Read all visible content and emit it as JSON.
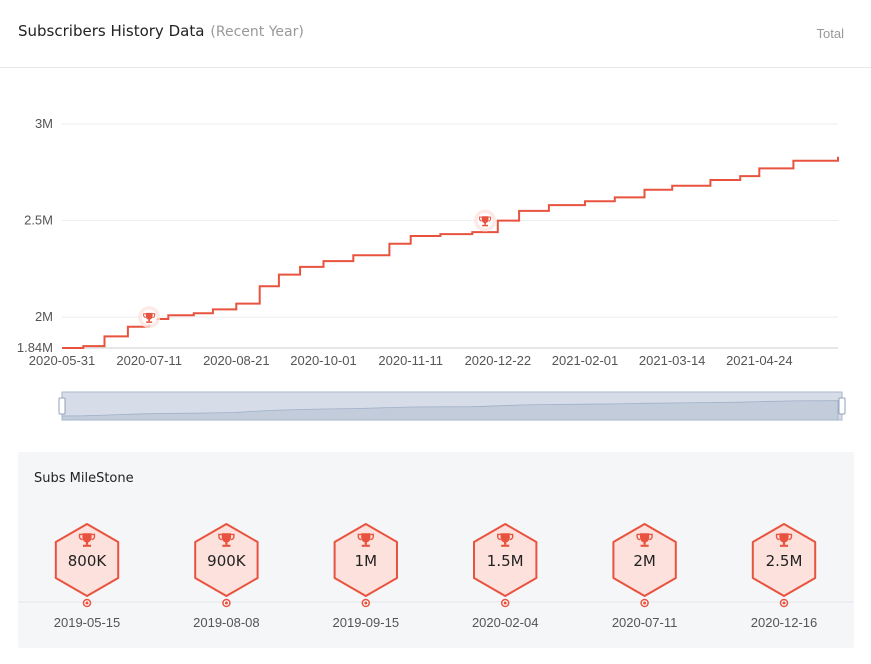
{
  "header": {
    "title": "Subscribers History Data",
    "subtitle": "(Recent Year)",
    "total_label": "Total"
  },
  "colors": {
    "line": "#e8533f",
    "hex_fill": "#fde1dc",
    "grid": "#eeeeee",
    "slider_fill": "#d6dde8",
    "slider_border": "#aab8cc"
  },
  "chart_data": {
    "type": "line",
    "title": "Subscribers History Data",
    "x_tick_labels": [
      "2020-05-31",
      "2020-07-11",
      "2020-08-21",
      "2020-10-01",
      "2020-11-11",
      "2020-12-22",
      "2021-02-01",
      "2021-03-14",
      "2021-04-24"
    ],
    "y_tick_labels": [
      "3M",
      "2.5M",
      "2M",
      "1.84M"
    ],
    "ylim": [
      1840000,
      3000000
    ],
    "x_range": [
      "2020-05-31",
      "2021-05-31"
    ],
    "grid": true,
    "series": [
      {
        "values": [
          [
            "2020-05-31",
            1840000
          ],
          [
            "2020-06-10",
            1850000
          ],
          [
            "2020-06-20",
            1900000
          ],
          [
            "2020-07-01",
            1950000
          ],
          [
            "2020-07-11",
            1990000
          ],
          [
            "2020-07-20",
            2010000
          ],
          [
            "2020-08-01",
            2020000
          ],
          [
            "2020-08-10",
            2040000
          ],
          [
            "2020-08-21",
            2070000
          ],
          [
            "2020-09-01",
            2160000
          ],
          [
            "2020-09-10",
            2220000
          ],
          [
            "2020-09-20",
            2260000
          ],
          [
            "2020-10-01",
            2290000
          ],
          [
            "2020-10-15",
            2320000
          ],
          [
            "2020-11-01",
            2380000
          ],
          [
            "2020-11-11",
            2420000
          ],
          [
            "2020-11-25",
            2430000
          ],
          [
            "2020-12-10",
            2440000
          ],
          [
            "2020-12-22",
            2500000
          ],
          [
            "2021-01-01",
            2550000
          ],
          [
            "2021-01-15",
            2580000
          ],
          [
            "2021-02-01",
            2600000
          ],
          [
            "2021-02-15",
            2620000
          ],
          [
            "2021-03-01",
            2660000
          ],
          [
            "2021-03-14",
            2680000
          ],
          [
            "2021-04-01",
            2710000
          ],
          [
            "2021-04-15",
            2730000
          ],
          [
            "2021-04-24",
            2770000
          ],
          [
            "2021-05-10",
            2810000
          ],
          [
            "2021-05-31",
            2830000
          ]
        ]
      }
    ],
    "markers": [
      {
        "date": "2020-07-11",
        "value": 2000000,
        "icon": "trophy-icon"
      },
      {
        "date": "2020-12-16",
        "value": 2500000,
        "icon": "trophy-icon"
      }
    ]
  },
  "milestones": {
    "title": "Subs MileStone",
    "items": [
      {
        "label": "800K",
        "date": "2019-05-15"
      },
      {
        "label": "900K",
        "date": "2019-08-08"
      },
      {
        "label": "1M",
        "date": "2019-09-15"
      },
      {
        "label": "1.5M",
        "date": "2020-02-04"
      },
      {
        "label": "2M",
        "date": "2020-07-11"
      },
      {
        "label": "2.5M",
        "date": "2020-12-16"
      }
    ]
  }
}
